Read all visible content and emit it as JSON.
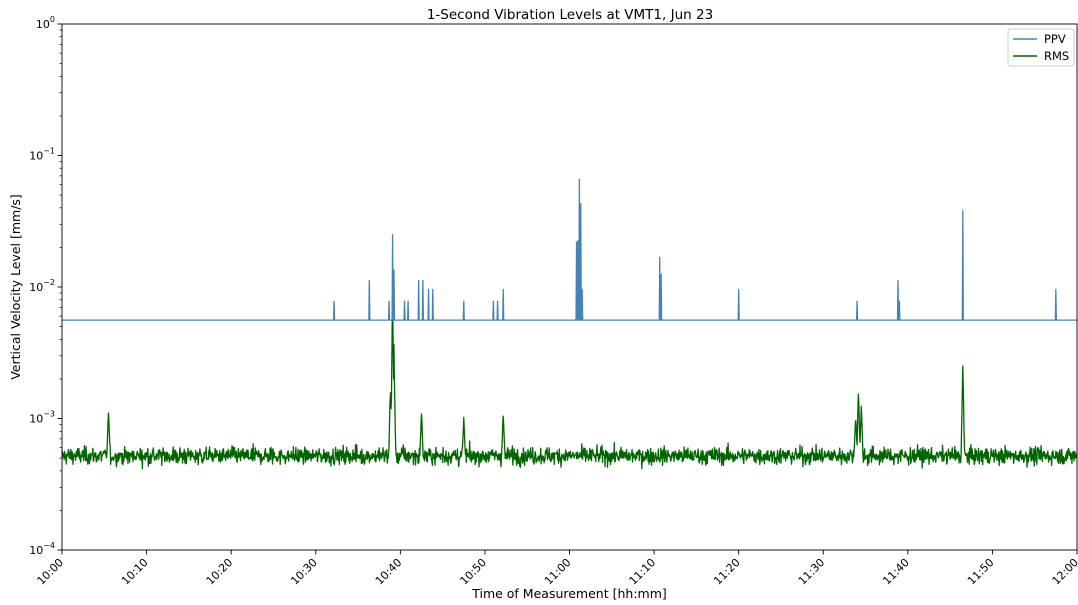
{
  "chart_data": {
    "type": "line",
    "title": "1-Second Vibration Levels at VMT1, Jun 23",
    "xlabel": "Time of Measurement [hh:mm]",
    "ylabel": "Vertical Velocity Level [mm/s]",
    "x_range": [
      "10:00",
      "12:00"
    ],
    "x_ticks": [
      "10:00",
      "10:10",
      "10:20",
      "10:30",
      "10:40",
      "10:50",
      "11:00",
      "11:10",
      "11:20",
      "11:30",
      "11:40",
      "11:50",
      "12:00"
    ],
    "y_scale": "log",
    "ylim": [
      0.0001,
      1
    ],
    "y_ticks": [
      {
        "value": 0.0001,
        "base": "10",
        "exp": "−4"
      },
      {
        "value": 0.001,
        "base": "10",
        "exp": "−3"
      },
      {
        "value": 0.01,
        "base": "10",
        "exp": "−2"
      },
      {
        "value": 0.1,
        "base": "10",
        "exp": "−1"
      },
      {
        "value": 1,
        "base": "10",
        "exp": "0"
      }
    ],
    "grid": false,
    "legend_position": "top-right",
    "series": [
      {
        "name": "PPV",
        "color": "#4682b4",
        "baseline": 0.0056,
        "spikes": [
          {
            "t": "10:32:10",
            "v": 0.0078
          },
          {
            "t": "10:36:20",
            "v": 0.0112
          },
          {
            "t": "10:38:40",
            "v": 0.0078
          },
          {
            "t": "10:39:05",
            "v": 0.025
          },
          {
            "t": "10:39:15",
            "v": 0.0135
          },
          {
            "t": "10:40:30",
            "v": 0.0078
          },
          {
            "t": "10:40:55",
            "v": 0.0078
          },
          {
            "t": "10:42:10",
            "v": 0.0112
          },
          {
            "t": "10:42:40",
            "v": 0.0112
          },
          {
            "t": "10:43:20",
            "v": 0.0096
          },
          {
            "t": "10:43:50",
            "v": 0.0096
          },
          {
            "t": "10:47:30",
            "v": 0.0078
          },
          {
            "t": "10:51:00",
            "v": 0.0078
          },
          {
            "t": "10:51:30",
            "v": 0.0078
          },
          {
            "t": "10:52:10",
            "v": 0.0096
          },
          {
            "t": "11:00:50",
            "v": 0.022
          },
          {
            "t": "11:01:00",
            "v": 0.0225
          },
          {
            "t": "11:01:10",
            "v": 0.066
          },
          {
            "t": "11:01:20",
            "v": 0.043
          },
          {
            "t": "11:01:30",
            "v": 0.0096
          },
          {
            "t": "11:10:40",
            "v": 0.0168
          },
          {
            "t": "11:10:50",
            "v": 0.0125
          },
          {
            "t": "11:20:00",
            "v": 0.0096
          },
          {
            "t": "11:34:00",
            "v": 0.0078
          },
          {
            "t": "11:38:50",
            "v": 0.0112
          },
          {
            "t": "11:39:00",
            "v": 0.0078
          },
          {
            "t": "11:46:30",
            "v": 0.038
          },
          {
            "t": "11:57:30",
            "v": 0.0096
          }
        ]
      },
      {
        "name": "RMS",
        "color": "#006400",
        "baseline": 0.00052,
        "noise_range": [
          0.00035,
          0.00075
        ],
        "peaks": [
          {
            "t": "10:05:30",
            "v": 0.00124
          },
          {
            "t": "10:38:50",
            "v": 0.0021
          },
          {
            "t": "10:39:05",
            "v": 0.0112
          },
          {
            "t": "10:39:15",
            "v": 0.0037
          },
          {
            "t": "10:42:30",
            "v": 0.0012
          },
          {
            "t": "10:47:30",
            "v": 0.00102
          },
          {
            "t": "10:52:10",
            "v": 0.00116
          },
          {
            "t": "11:33:50",
            "v": 0.00112
          },
          {
            "t": "11:34:10",
            "v": 0.0018
          },
          {
            "t": "11:34:30",
            "v": 0.0014
          },
          {
            "t": "11:46:30",
            "v": 0.0031
          }
        ]
      }
    ]
  }
}
